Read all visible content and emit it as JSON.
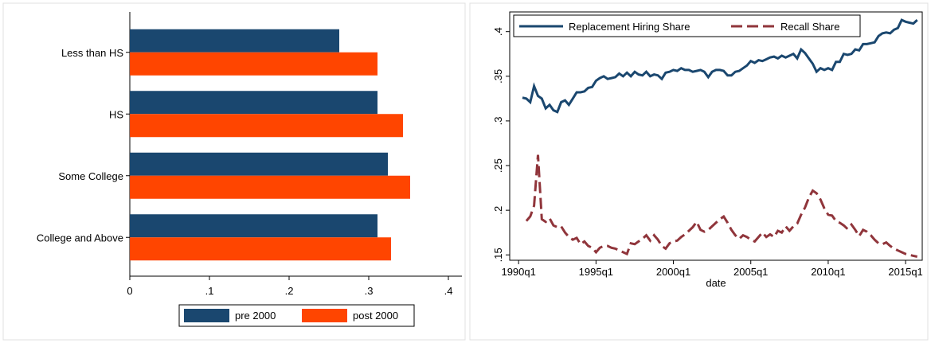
{
  "chart_data": [
    {
      "type": "bar",
      "orientation": "horizontal",
      "categories": [
        "Less than HS",
        "HS",
        "Some College",
        "College and Above"
      ],
      "series": [
        {
          "name": "pre 2000",
          "color": "#1a476f",
          "values": [
            0.263,
            0.311,
            0.324,
            0.311
          ]
        },
        {
          "name": "post 2000",
          "color": "#ff4500",
          "values": [
            0.311,
            0.343,
            0.352,
            0.328
          ]
        }
      ],
      "xlim": [
        0,
        0.412
      ],
      "xticks": [
        0,
        {
          "value": 0.1,
          "label": ".1"
        },
        {
          "value": 0.2,
          "label": ".2"
        },
        {
          "value": 0.3,
          "label": ".3"
        },
        {
          "value": 0.4,
          "label": ".4"
        }
      ],
      "legend": "bottom"
    },
    {
      "type": "line",
      "x_label": "date",
      "x": [
        121,
        122,
        123,
        124,
        125,
        126,
        127,
        128,
        129,
        130,
        131,
        132,
        133,
        134,
        135,
        136,
        137,
        138,
        139,
        140,
        141,
        142,
        143,
        144,
        145,
        146,
        147,
        148,
        149,
        150,
        151,
        152,
        153,
        154,
        155,
        156,
        157,
        158,
        159,
        160,
        161,
        162,
        163,
        164,
        165,
        166,
        167,
        168,
        169,
        170,
        171,
        172,
        173,
        174,
        175,
        176,
        177,
        178,
        179,
        180,
        181,
        182,
        183,
        184,
        185,
        186,
        187,
        188,
        189,
        190,
        191,
        192,
        193,
        194,
        195,
        196,
        197,
        198,
        199,
        200,
        201,
        202,
        203,
        204,
        205,
        206,
        207,
        208,
        209,
        210,
        211,
        212,
        213,
        214,
        215,
        216,
        217,
        218,
        219,
        220,
        221,
        222,
        223
      ],
      "series": [
        {
          "name": "Replacement Hiring Share",
          "color": "#1a476f",
          "dash": false,
          "values": [
            0.326,
            0.325,
            0.321,
            0.339,
            0.328,
            0.325,
            0.314,
            0.318,
            0.312,
            0.31,
            0.321,
            0.323,
            0.318,
            0.325,
            0.332,
            0.332,
            0.333,
            0.337,
            0.338,
            0.345,
            0.348,
            0.35,
            0.347,
            0.348,
            0.349,
            0.353,
            0.35,
            0.354,
            0.35,
            0.355,
            0.352,
            0.351,
            0.355,
            0.35,
            0.352,
            0.351,
            0.347,
            0.354,
            0.355,
            0.357,
            0.356,
            0.359,
            0.357,
            0.357,
            0.355,
            0.356,
            0.357,
            0.355,
            0.349,
            0.355,
            0.357,
            0.357,
            0.356,
            0.351,
            0.351,
            0.355,
            0.356,
            0.359,
            0.362,
            0.367,
            0.365,
            0.368,
            0.367,
            0.369,
            0.371,
            0.372,
            0.37,
            0.373,
            0.371,
            0.373,
            0.375,
            0.37,
            0.38,
            0.376,
            0.37,
            0.364,
            0.355,
            0.359,
            0.357,
            0.359,
            0.357,
            0.366,
            0.366,
            0.375,
            0.374,
            0.375,
            0.38,
            0.379,
            0.386,
            0.386,
            0.387,
            0.388,
            0.395,
            0.398,
            0.399,
            0.398,
            0.402,
            0.404,
            0.413,
            0.411,
            0.41,
            0.409,
            0.413
          ]
        },
        {
          "name": "Recall Share",
          "color": "#90353b",
          "dash": true,
          "values": [
            null,
            0.188,
            0.193,
            0.205,
            0.262,
            0.19,
            0.187,
            0.191,
            0.183,
            0.181,
            0.182,
            0.175,
            0.17,
            0.167,
            0.169,
            0.162,
            0.165,
            0.16,
            0.158,
            0.153,
            0.158,
            0.16,
            0.16,
            0.158,
            0.157,
            0.155,
            0.153,
            0.151,
            0.163,
            0.162,
            0.165,
            0.168,
            0.172,
            0.166,
            0.172,
            0.167,
            0.16,
            0.157,
            0.163,
            0.165,
            0.166,
            0.17,
            0.173,
            0.177,
            0.181,
            0.187,
            0.178,
            0.176,
            0.178,
            0.182,
            0.186,
            0.19,
            0.193,
            0.186,
            0.178,
            0.172,
            0.168,
            0.172,
            0.17,
            0.167,
            0.165,
            0.17,
            0.175,
            0.17,
            0.173,
            0.17,
            0.177,
            0.175,
            0.182,
            0.177,
            0.182,
            0.185,
            0.195,
            0.203,
            0.214,
            0.222,
            0.219,
            0.212,
            0.202,
            0.195,
            0.194,
            0.188,
            0.186,
            0.183,
            0.179,
            0.184,
            0.178,
            0.171,
            0.178,
            0.176,
            0.172,
            0.167,
            0.163,
            0.162,
            0.164,
            0.16,
            0.157,
            0.155,
            0.153,
            0.151,
            0.15,
            0.149,
            0.148
          ]
        }
      ],
      "xlim": [
        117.7,
        224.3
      ],
      "xticks": [
        {
          "value": 120,
          "label": "1990q1"
        },
        {
          "value": 140,
          "label": "1995q1"
        },
        {
          "value": 160,
          "label": "2000q1"
        },
        {
          "value": 180,
          "label": "2005q1"
        },
        {
          "value": 200,
          "label": "2010q1"
        },
        {
          "value": 220,
          "label": "2015q1"
        }
      ],
      "ylim": [
        0.144,
        0.422
      ],
      "yticks": [
        {
          "value": 0.15,
          "label": ".15"
        },
        {
          "value": 0.2,
          "label": ".2"
        },
        {
          "value": 0.25,
          "label": ".25"
        },
        {
          "value": 0.3,
          "label": ".3"
        },
        {
          "value": 0.35,
          "label": ".35"
        },
        {
          "value": 0.4,
          "label": ".4"
        }
      ],
      "legend": "top-left"
    }
  ]
}
